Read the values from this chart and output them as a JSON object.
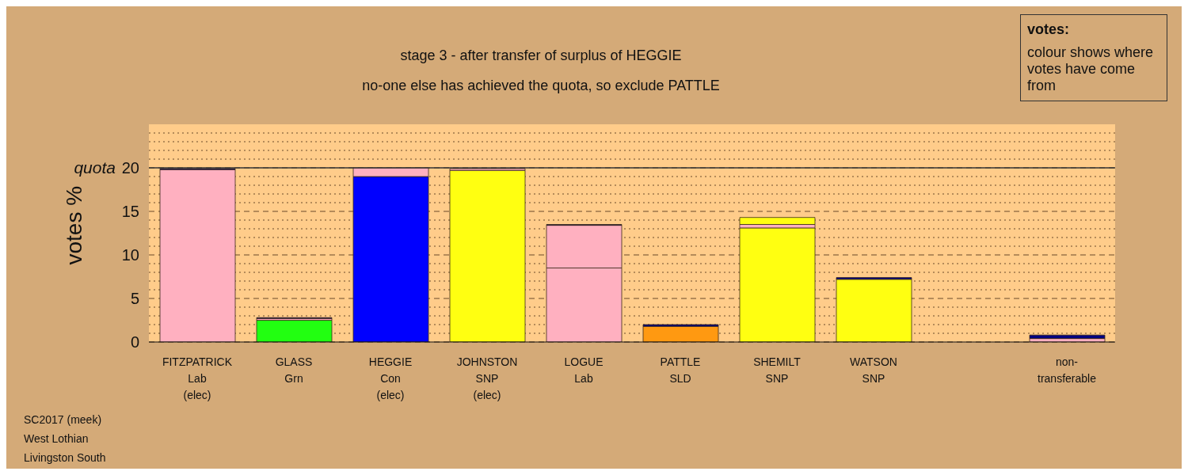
{
  "chart_data": {
    "type": "bar",
    "title": "stage 3 - after transfer of surplus of HEGGIE",
    "subtitle": "no-one else has achieved the quota, so exclude PATTLE",
    "ylabel": "votes %",
    "categories": [
      "FITZPATRICK\nLab\n(elec)",
      "GLASS\nGrn",
      "HEGGIE\nCon\n(elec)",
      "JOHNSTON\nSNP\n(elec)",
      "LOGUE\nLab",
      "PATTLE\nSLD",
      "SHEMILT\nSNP",
      "WATSON\nSNP",
      null,
      "non-\ntransferable"
    ],
    "stacked": true,
    "series": [
      {
        "values": [
          19.8,
          2.5,
          19.0,
          19.7,
          8.5,
          1.8,
          13.1,
          7.2,
          null,
          0.4
        ],
        "colors": [
          "#ffb0c0",
          "#22ff11",
          "#0000ff",
          "#ffff11",
          "#ffb0c0",
          "#ff9911",
          "#ffff11",
          "#ffff11",
          "#ffb0c0",
          "#ffb0c0"
        ]
      },
      {
        "values": [
          0.1,
          0.2,
          1.0,
          0.2,
          4.9,
          0.2,
          0.4,
          0.2,
          null,
          0.4
        ],
        "colors": [
          "#000080",
          "#ffb0c0",
          "#ffb0c0",
          "#ffb0c0",
          "#ffb0c0",
          "#000080",
          "#ffb0c0",
          "#000080",
          "#000080",
          "#000080"
        ]
      },
      {
        "values": [
          null,
          0.1,
          null,
          null,
          0.1,
          null,
          0.8,
          null,
          null,
          null
        ],
        "colors": [
          "#000080",
          "#000080",
          "#000080",
          "#000080",
          "#000080",
          "#000080",
          "#ffff11",
          "#000080",
          "#000080",
          "#000080"
        ]
      }
    ],
    "ylim": [
      0,
      25
    ],
    "yticks": [
      0,
      {
        "value": 1,
        "label": null
      },
      {
        "value": 2,
        "label": null
      },
      {
        "value": 3,
        "label": null
      },
      {
        "value": 4,
        "label": null
      },
      5,
      {
        "value": 6,
        "label": null
      },
      {
        "value": 7,
        "label": null
      },
      {
        "value": 8,
        "label": null
      },
      {
        "value": 9,
        "label": null
      },
      10,
      {
        "value": 11,
        "label": null
      },
      {
        "value": 12,
        "label": null
      },
      {
        "value": 13,
        "label": null
      },
      {
        "value": 14,
        "label": null
      },
      15,
      {
        "value": 16,
        "label": null
      },
      {
        "value": 17,
        "label": null
      },
      {
        "value": 18,
        "label": null
      },
      {
        "value": 19,
        "label": null
      },
      20,
      {
        "value": 21,
        "label": null
      },
      {
        "value": 22,
        "label": null
      },
      {
        "value": 23,
        "label": null
      },
      {
        "value": 24,
        "label": null
      }
    ],
    "grid": "y",
    "legend": false,
    "ref_lines": [
      {
        "axis": "y",
        "value": 20,
        "label": "quota",
        "color": "#333333",
        "line_style": "solid"
      }
    ],
    "annotations": [
      "votes:",
      "colour shows where votes have come from",
      "SC2017 (meek)",
      "West Lothian",
      "Livingston South"
    ]
  }
}
